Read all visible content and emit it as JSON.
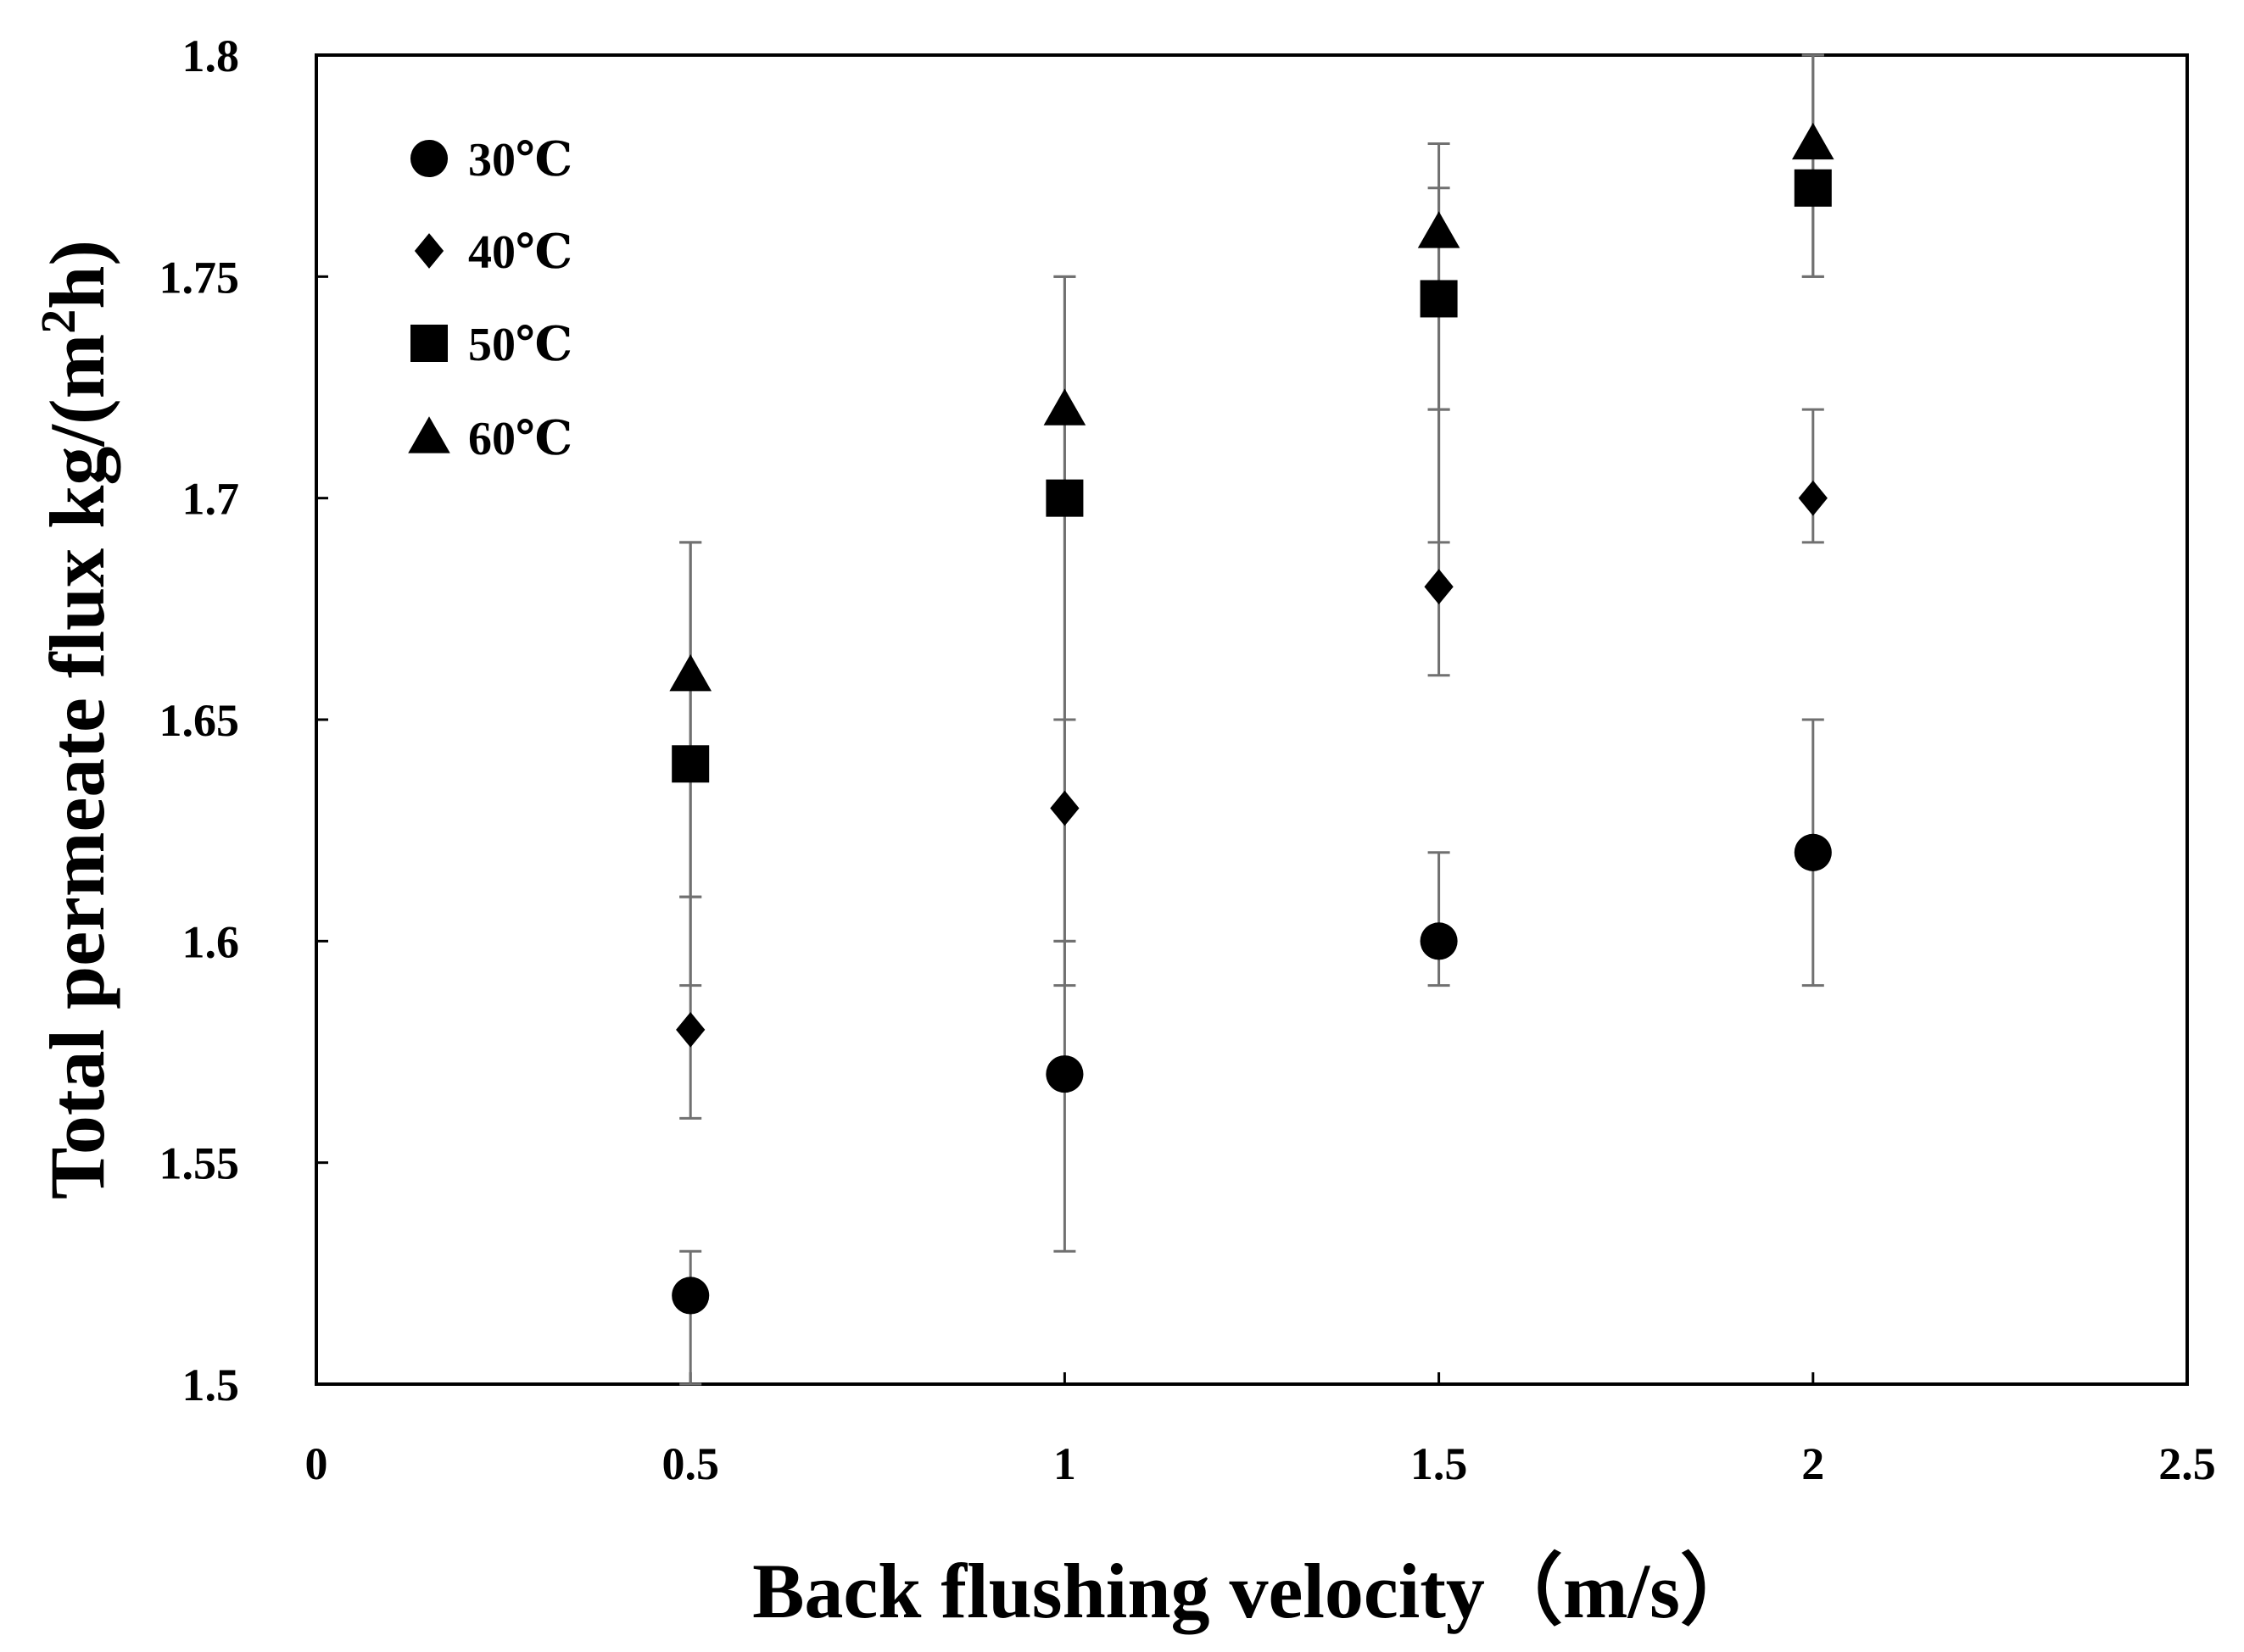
{
  "chart_data": {
    "type": "scatter",
    "title": "",
    "xlabel": "Back flushing velocity（m/s）",
    "ylabel_main": "Total permeate  flux kg/(m",
    "ylabel_sup": "2",
    "ylabel_tail": "h)",
    "xlim": [
      0,
      2.5
    ],
    "ylim": [
      1.5,
      1.8
    ],
    "xticks": [
      0,
      0.5,
      1,
      1.5,
      2,
      2.5
    ],
    "xtick_labels": [
      "0",
      "0.5",
      "1",
      "1.5",
      "2",
      "2.5"
    ],
    "yticks": [
      1.5,
      1.55,
      1.6,
      1.65,
      1.7,
      1.75,
      1.8
    ],
    "ytick_labels": [
      "1.5",
      "1.55",
      "1.6",
      "1.65",
      "1.7",
      "1.75",
      "1.8"
    ],
    "grid": false,
    "legend_position": "top-left",
    "series": [
      {
        "name": "30℃",
        "marker": "circle",
        "color": "#000000",
        "x": [
          0.5,
          1,
          1.5,
          2
        ],
        "y": [
          1.52,
          1.57,
          1.6,
          1.62
        ],
        "err_low": [
          1.5,
          1.53,
          1.59,
          1.59
        ],
        "err_high": [
          1.53,
          1.6,
          1.62,
          1.65
        ]
      },
      {
        "name": "40℃",
        "marker": "diamond",
        "color": "#000000",
        "x": [
          0.5,
          1,
          1.5,
          2
        ],
        "y": [
          1.58,
          1.63,
          1.68,
          1.7
        ],
        "err_low": [
          1.56,
          1.59,
          1.66,
          1.69
        ],
        "err_high": [
          1.61,
          1.65,
          1.72,
          1.72
        ]
      },
      {
        "name": "50℃",
        "marker": "square",
        "color": "#000000",
        "x": [
          0.5,
          1,
          1.5,
          2
        ],
        "y": [
          1.64,
          1.7,
          1.745,
          1.77
        ],
        "err_low": [
          1.59,
          1.6,
          1.69,
          1.75
        ],
        "err_high": [
          1.69,
          1.75,
          1.77,
          1.8
        ]
      },
      {
        "name": "60℃",
        "marker": "triangle",
        "color": "#000000",
        "x": [
          0.5,
          1,
          1.5,
          2
        ],
        "y": [
          1.66,
          1.72,
          1.76,
          1.78
        ],
        "err_low": [
          1.61,
          1.65,
          1.72,
          1.75
        ],
        "err_high": [
          1.69,
          1.75,
          1.78,
          1.8
        ]
      }
    ]
  }
}
